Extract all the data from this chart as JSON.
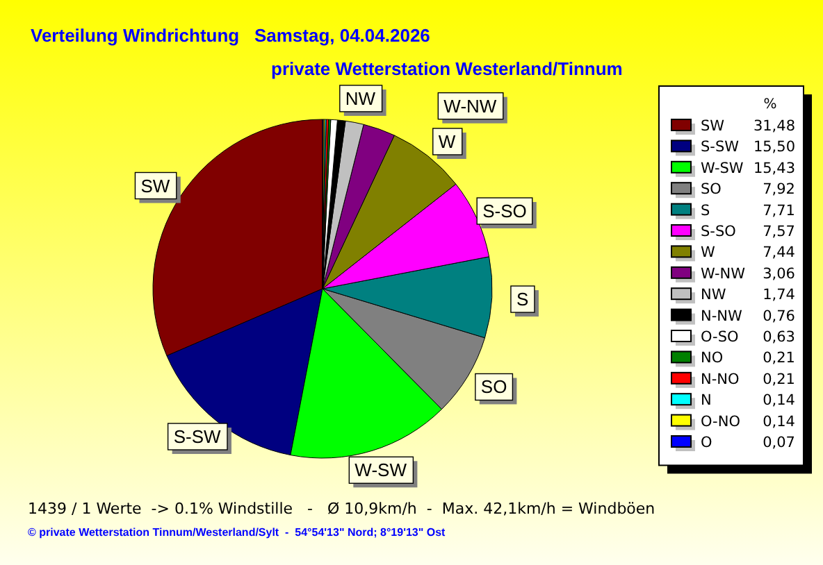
{
  "chart_data": {
    "type": "pie",
    "title": "Verteilung Windrichtung   Samstag, 04.04.2026",
    "subtitle": "private Wetterstation Westerland/Tinnum",
    "legend_title": "%",
    "legend": "right",
    "categories": [
      "SW",
      "S-SW",
      "W-SW",
      "SO",
      "S",
      "S-SO",
      "W",
      "W-NW",
      "NW",
      "N-NW",
      "O-SO",
      "NO",
      "N-NO",
      "N",
      "O-NO",
      "O"
    ],
    "values": [
      31.48,
      15.5,
      15.43,
      7.92,
      7.71,
      7.57,
      7.44,
      3.06,
      1.74,
      0.76,
      0.63,
      0.21,
      0.21,
      0.14,
      0.14,
      0.07
    ],
    "value_labels": [
      "31,48",
      "15,50",
      "15,43",
      "7,92",
      "7,71",
      "7,57",
      "7,44",
      "3,06",
      "1,74",
      "0,76",
      "0,63",
      "0,21",
      "0,21",
      "0,14",
      "0,14",
      "0,07"
    ],
    "colors": [
      "#800000",
      "#000080",
      "#00ff00",
      "#808080",
      "#008080",
      "#ff00ff",
      "#808000",
      "#800080",
      "#c0c0c0",
      "#000000",
      "#ffffff",
      "#008000",
      "#ff0000",
      "#00ffff",
      "#ffff00",
      "#0000ff"
    ],
    "annotations": [
      "1439 / 1 Werte  -> 0.1% Windstille   -   Ø 10,9km/h  -  Max. 42,1km/h = Windböen",
      "© private Wetterstation Tinnum/Westerland/Sylt  -  54°54'13\" Nord; 8°19'13\" Ost"
    ]
  }
}
